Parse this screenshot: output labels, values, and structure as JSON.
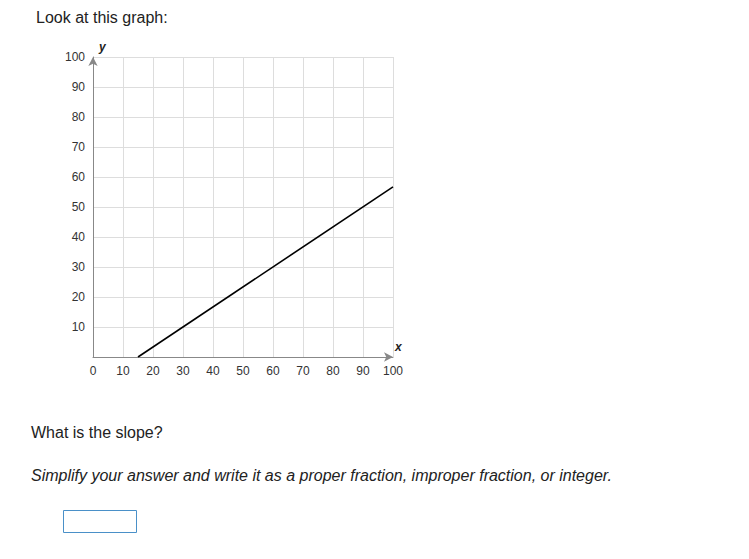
{
  "chart_data": {
    "type": "line",
    "title": "Look at this graph:",
    "x_label": "x",
    "y_label": "y",
    "annotations": [
      "What is the slope?",
      "Simplify your answer and write it as a proper fraction, improper fraction, or integer."
    ],
    "x": [
      15,
      100
    ],
    "values": [
      0,
      56.7
    ],
    "color": "#000000",
    "marker": "arrow",
    "xlim": [
      0,
      100
    ],
    "xticks": [
      0,
      10,
      20,
      30,
      40,
      50,
      60,
      70,
      80,
      90,
      100
    ],
    "ylim": [
      0,
      100
    ],
    "yticks": [
      10,
      20,
      30,
      40,
      50,
      60,
      70,
      80,
      90,
      100
    ],
    "grid": true
  }
}
